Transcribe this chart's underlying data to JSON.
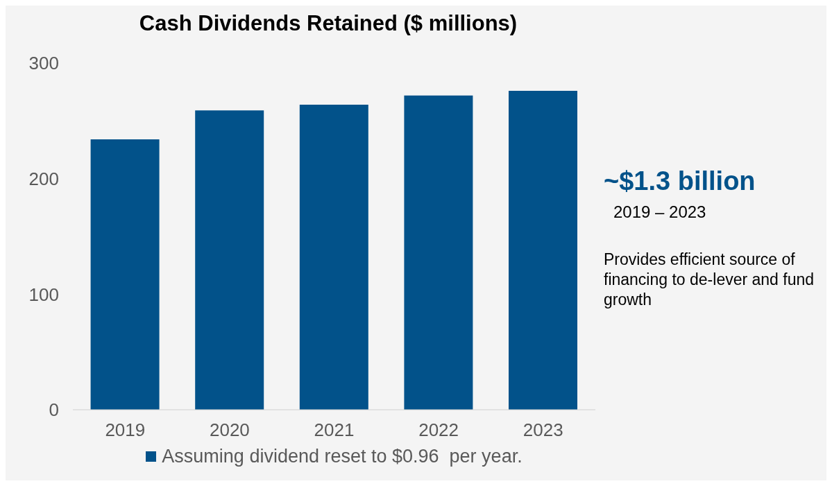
{
  "chart_data": {
    "type": "bar",
    "title": "Cash Dividends Retained ($ millions)",
    "categories": [
      "2019",
      "2020",
      "2021",
      "2022",
      "2023"
    ],
    "series": [
      {
        "name": "Assuming dividend reset to $0.96  per year.",
        "color": "#02528a",
        "values": [
          234,
          259,
          264,
          272,
          276
        ]
      }
    ],
    "ylim": [
      0,
      300
    ],
    "yticks": [
      0,
      100,
      200,
      300
    ],
    "grid": false,
    "legend": "bottom",
    "annotations": [
      "~$1.3 billion",
      "2019 – 2023",
      "Provides efficient source of financing to de-lever and fund growth"
    ]
  }
}
